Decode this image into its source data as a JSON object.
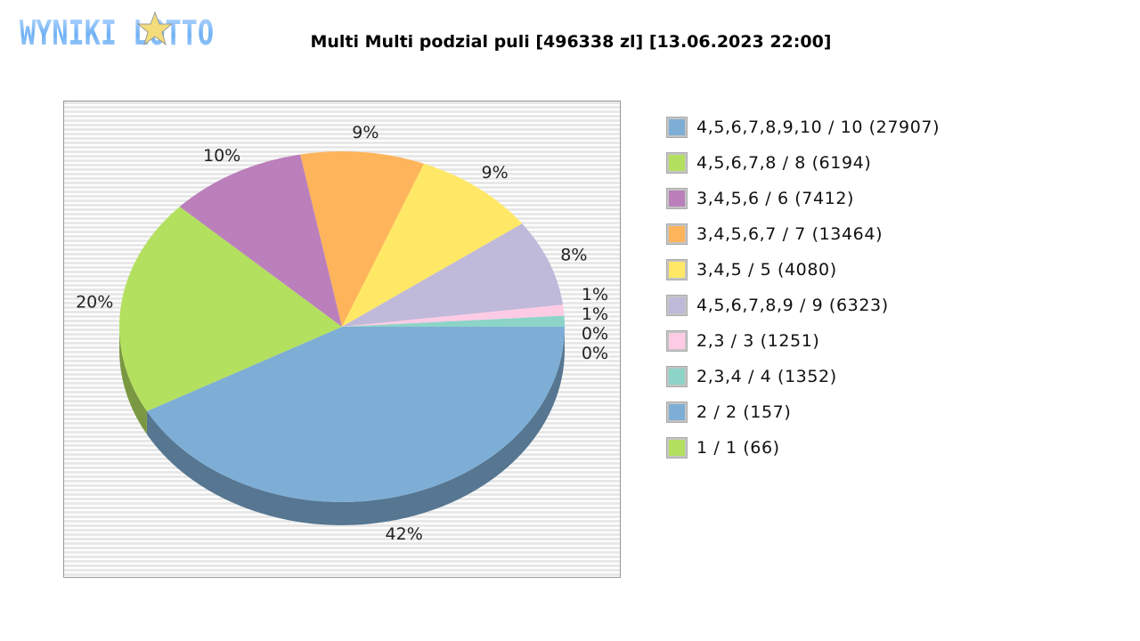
{
  "logo": {
    "text": "WYNIKI LOTTO"
  },
  "chart_data": {
    "type": "pie",
    "title": "Multi Multi podzial puli [496338 zl] [13.06.2023 22:00]",
    "legend_position": "right",
    "style": "3d",
    "slices": [
      {
        "label": "4,5,6,7,8,9,10 / 10 (27907)",
        "percent": 42,
        "percent_label": "42%",
        "color": "#7eaed5"
      },
      {
        "label": "4,5,6,7,8 / 8 (6194)",
        "percent": 20,
        "percent_label": "20%",
        "color": "#b3e05f"
      },
      {
        "label": "3,4,5,6 / 6 (7412)",
        "percent": 10,
        "percent_label": "10%",
        "color": "#bb80bb"
      },
      {
        "label": "3,4,5,6,7 / 7 (13464)",
        "percent": 9,
        "percent_label": "9%",
        "color": "#feb45a"
      },
      {
        "label": "3,4,5 / 5 (4080)",
        "percent": 9,
        "percent_label": "9%",
        "color": "#ffe866"
      },
      {
        "label": "4,5,6,7,8,9 / 9 (6323)",
        "percent": 8,
        "percent_label": "8%",
        "color": "#bfb9da"
      },
      {
        "label": "2,3 / 3 (1251)",
        "percent": 1,
        "percent_label": "1%",
        "color": "#fecbe5"
      },
      {
        "label": "2,3,4 / 4 (1352)",
        "percent": 1,
        "percent_label": "1%",
        "color": "#8dd4c8"
      },
      {
        "label": "2 / 2 (157)",
        "percent": 0,
        "percent_label": "0%",
        "color": "#7eaed5"
      },
      {
        "label": "1 / 1 (66)",
        "percent": 0,
        "percent_label": "0%",
        "color": "#b3e05f"
      }
    ]
  }
}
